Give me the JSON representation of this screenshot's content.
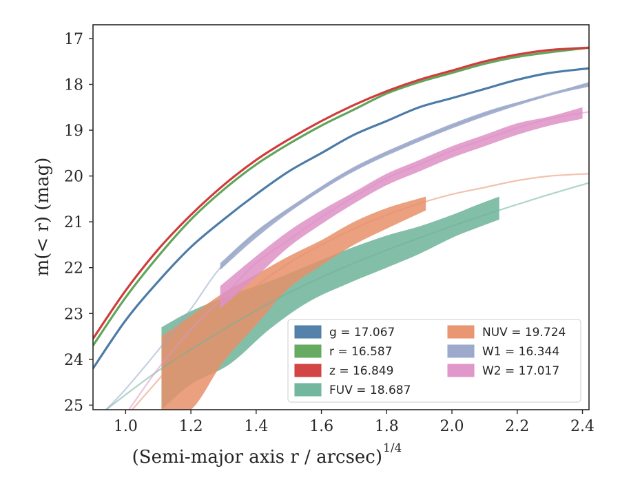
{
  "chart_data": {
    "type": "line",
    "xlabel": "(Semi-major axis r / arcsec)",
    "xlabel_exp": "1/4",
    "ylabel": "m(< r) (mag)",
    "xlim": [
      0.9,
      2.42
    ],
    "ylim": [
      25.1,
      16.7
    ],
    "y_inverted": true,
    "xticks": [
      "1.0",
      "1.2",
      "1.4",
      "1.6",
      "1.8",
      "2.0",
      "2.2",
      "2.4"
    ],
    "yticks": [
      "17",
      "18",
      "19",
      "20",
      "21",
      "22",
      "23",
      "24",
      "25"
    ],
    "legend_position": "lower-right",
    "legend": [
      {
        "name": "g = 17.067",
        "color": "#4c7ba7"
      },
      {
        "name": "r = 16.587",
        "color": "#5fa55a"
      },
      {
        "name": "z = 16.849",
        "color": "#d03c3c"
      },
      {
        "name": "FUV = 18.687",
        "color": "#6db39a"
      },
      {
        "name": "NUV = 19.724",
        "color": "#e8906a"
      },
      {
        "name": "W1 = 16.344",
        "color": "#98a5c8"
      },
      {
        "name": "W2 = 17.017",
        "color": "#de91c6"
      }
    ],
    "series": [
      {
        "key": "FUV",
        "color": "#6db39a",
        "model": [
          [
            0.94,
            25.1
          ],
          [
            1.1,
            24.25
          ],
          [
            1.3,
            23.35
          ],
          [
            1.5,
            22.55
          ],
          [
            1.7,
            21.9
          ],
          [
            1.9,
            21.35
          ],
          [
            2.1,
            20.85
          ],
          [
            2.3,
            20.4
          ],
          [
            2.42,
            20.15
          ]
        ],
        "band_x": [
          1.11,
          1.2,
          1.32,
          1.44,
          1.56,
          1.68,
          1.8,
          1.9,
          2.0,
          2.07,
          2.145
        ],
        "band_upper": [
          23.3,
          22.95,
          22.6,
          22.3,
          21.95,
          21.6,
          21.3,
          21.1,
          20.85,
          20.65,
          20.45
        ],
        "band_lower": [
          25.1,
          24.55,
          24.1,
          23.35,
          22.75,
          22.35,
          22.0,
          21.7,
          21.35,
          21.15,
          20.95
        ]
      },
      {
        "key": "NUV",
        "color": "#e8906a",
        "model": [
          [
            1.02,
            25.1
          ],
          [
            1.1,
            24.45
          ],
          [
            1.2,
            23.65
          ],
          [
            1.3,
            22.95
          ],
          [
            1.4,
            22.4
          ],
          [
            1.5,
            21.9
          ],
          [
            1.6,
            21.5
          ],
          [
            1.7,
            21.15
          ],
          [
            1.8,
            20.85
          ],
          [
            1.9,
            20.6
          ],
          [
            2.0,
            20.4
          ],
          [
            2.1,
            20.25
          ],
          [
            2.2,
            20.1
          ],
          [
            2.3,
            20.0
          ],
          [
            2.42,
            19.95
          ]
        ],
        "band_x": [
          1.11,
          1.2,
          1.3,
          1.4,
          1.5,
          1.6,
          1.7,
          1.8,
          1.92
        ],
        "band_upper": [
          23.5,
          23.05,
          22.55,
          22.15,
          21.75,
          21.4,
          21.0,
          20.7,
          20.45
        ],
        "band_lower": [
          25.1,
          25.1,
          24.05,
          23.25,
          22.45,
          21.95,
          21.5,
          21.15,
          20.75
        ]
      },
      {
        "key": "W1",
        "color": "#98a5c8",
        "model": [
          [
            0.94,
            25.1
          ],
          [
            1.0,
            24.65
          ],
          [
            1.1,
            23.8
          ],
          [
            1.2,
            22.9
          ],
          [
            1.29,
            22.0
          ],
          [
            1.4,
            21.25
          ],
          [
            1.53,
            20.6
          ],
          [
            1.7,
            19.85
          ],
          [
            1.9,
            19.2
          ],
          [
            2.1,
            18.65
          ],
          [
            2.3,
            18.2
          ],
          [
            2.42,
            18.0
          ]
        ],
        "band_x": [
          1.29,
          1.4,
          1.53,
          1.7,
          1.9,
          2.1,
          2.3,
          2.42
        ],
        "band_upper": [
          21.9,
          21.2,
          20.55,
          19.8,
          19.15,
          18.6,
          18.2,
          17.95
        ],
        "band_lower": [
          22.05,
          21.35,
          20.65,
          19.9,
          19.25,
          18.7,
          18.25,
          18.05
        ]
      },
      {
        "key": "W2",
        "color": "#de91c6",
        "model": [
          [
            1.01,
            25.1
          ],
          [
            1.1,
            24.2
          ],
          [
            1.2,
            23.35
          ],
          [
            1.29,
            22.7
          ],
          [
            1.4,
            21.9
          ],
          [
            1.5,
            21.4
          ],
          [
            1.6,
            20.9
          ],
          [
            1.7,
            20.45
          ],
          [
            1.8,
            20.05
          ],
          [
            1.9,
            19.75
          ],
          [
            2.0,
            19.45
          ],
          [
            2.1,
            19.2
          ],
          [
            2.2,
            18.95
          ],
          [
            2.3,
            18.75
          ],
          [
            2.42,
            18.6
          ]
        ],
        "band_x": [
          1.29,
          1.4,
          1.5,
          1.6,
          1.7,
          1.8,
          1.9,
          2.0,
          2.1,
          2.2,
          2.3,
          2.4
        ],
        "band_upper": [
          22.4,
          21.75,
          21.2,
          20.75,
          20.35,
          19.95,
          19.65,
          19.35,
          19.1,
          18.85,
          18.7,
          18.5
        ],
        "band_lower": [
          22.9,
          22.2,
          21.55,
          21.05,
          20.6,
          20.2,
          19.9,
          19.6,
          19.35,
          19.1,
          18.9,
          18.75
        ]
      },
      {
        "key": "g",
        "color": "#4c7ba7",
        "width": 3.2,
        "model": [
          [
            0.9,
            24.2
          ],
          [
            1.0,
            23.15
          ],
          [
            1.1,
            22.3
          ],
          [
            1.2,
            21.55
          ],
          [
            1.3,
            20.95
          ],
          [
            1.4,
            20.4
          ],
          [
            1.5,
            19.9
          ],
          [
            1.6,
            19.5
          ],
          [
            1.7,
            19.1
          ],
          [
            1.8,
            18.8
          ],
          [
            1.9,
            18.5
          ],
          [
            2.0,
            18.3
          ],
          [
            2.1,
            18.1
          ],
          [
            2.2,
            17.9
          ],
          [
            2.3,
            17.75
          ],
          [
            2.42,
            17.65
          ]
        ]
      },
      {
        "key": "r",
        "color": "#5fa55a",
        "width": 3.2,
        "model": [
          [
            0.9,
            23.7
          ],
          [
            1.0,
            22.65
          ],
          [
            1.1,
            21.75
          ],
          [
            1.2,
            20.95
          ],
          [
            1.3,
            20.3
          ],
          [
            1.4,
            19.75
          ],
          [
            1.5,
            19.3
          ],
          [
            1.6,
            18.9
          ],
          [
            1.7,
            18.55
          ],
          [
            1.8,
            18.2
          ],
          [
            1.9,
            17.95
          ],
          [
            2.0,
            17.75
          ],
          [
            2.1,
            17.55
          ],
          [
            2.2,
            17.4
          ],
          [
            2.3,
            17.3
          ],
          [
            2.42,
            17.2
          ]
        ]
      },
      {
        "key": "z",
        "color": "#d03c3c",
        "width": 3.2,
        "model": [
          [
            0.9,
            23.55
          ],
          [
            1.0,
            22.5
          ],
          [
            1.1,
            21.6
          ],
          [
            1.2,
            20.85
          ],
          [
            1.3,
            20.2
          ],
          [
            1.4,
            19.65
          ],
          [
            1.5,
            19.2
          ],
          [
            1.6,
            18.8
          ],
          [
            1.7,
            18.45
          ],
          [
            1.8,
            18.15
          ],
          [
            1.9,
            17.9
          ],
          [
            2.0,
            17.7
          ],
          [
            2.1,
            17.5
          ],
          [
            2.2,
            17.35
          ],
          [
            2.3,
            17.25
          ],
          [
            2.42,
            17.2
          ]
        ]
      }
    ]
  }
}
